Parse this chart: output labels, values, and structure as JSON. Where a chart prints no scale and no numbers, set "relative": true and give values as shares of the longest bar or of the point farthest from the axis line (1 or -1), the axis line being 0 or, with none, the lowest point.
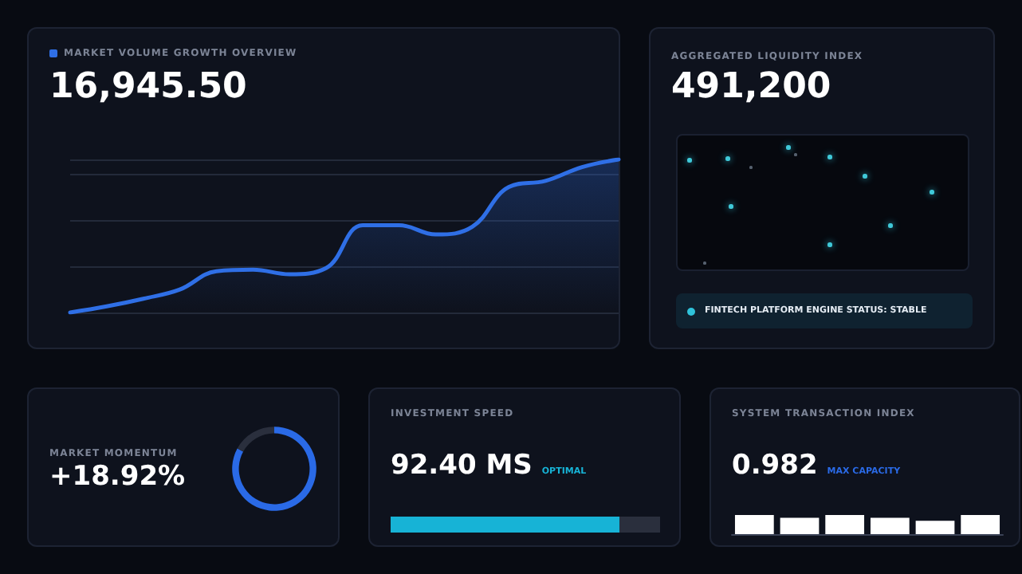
{
  "chart_data": [
    {
      "type": "area",
      "title": "MARKET VOLUME GROWTH OVERVIEW",
      "annotations": [
        "16,945.50"
      ],
      "relative": true,
      "grid": "y",
      "marker": "none",
      "line_style": "solid",
      "categories": [
        null,
        null,
        null,
        null,
        null,
        null,
        null,
        null,
        null,
        null,
        null,
        null,
        null,
        null,
        null,
        null
      ],
      "series": [
        {
          "color": "#2f6fe6",
          "values": [
            0,
            0.04,
            0.09,
            0.15,
            0.27,
            0.28,
            0.25,
            0.29,
            0.57,
            0.57,
            0.51,
            0.56,
            0.82,
            0.86,
            0.95,
            1
          ]
        }
      ]
    },
    {
      "type": "other",
      "title": "AGGREGATED LIQUIDITY INDEX",
      "annotations": [
        "491,200",
        "FINTECH PLATFORM ENGINE STATUS: STABLE"
      ]
    },
    {
      "type": "donut",
      "title": "MARKET MOMENTUM",
      "annotations": [
        "+18.92%"
      ],
      "categories": [
        null,
        null
      ],
      "values": [
        83,
        17
      ],
      "colors": [
        "#2a6ae6",
        "#2a2f3d"
      ]
    },
    {
      "type": "bar",
      "title": "INVESTMENT SPEED",
      "annotations": [
        "92.40 MS",
        "OPTIMAL"
      ],
      "orientation": "horizontal",
      "stacked": true,
      "relative": true,
      "categories": [
        null
      ],
      "series": [
        {
          "color": "#17b3d6",
          "values": [
            0.85
          ]
        },
        {
          "color": "#2a2f3d",
          "values": [
            0.15
          ]
        }
      ]
    },
    {
      "type": "bar",
      "title": "SYSTEM TRANSACTION INDEX",
      "annotations": [
        "0.982",
        "MAX CAPACITY"
      ],
      "relative": true,
      "categories": [
        null,
        null,
        null,
        null,
        null,
        null
      ],
      "values": [
        1,
        0.85,
        1,
        0.85,
        0.7,
        1
      ],
      "color": "#ffffff"
    }
  ]
}
